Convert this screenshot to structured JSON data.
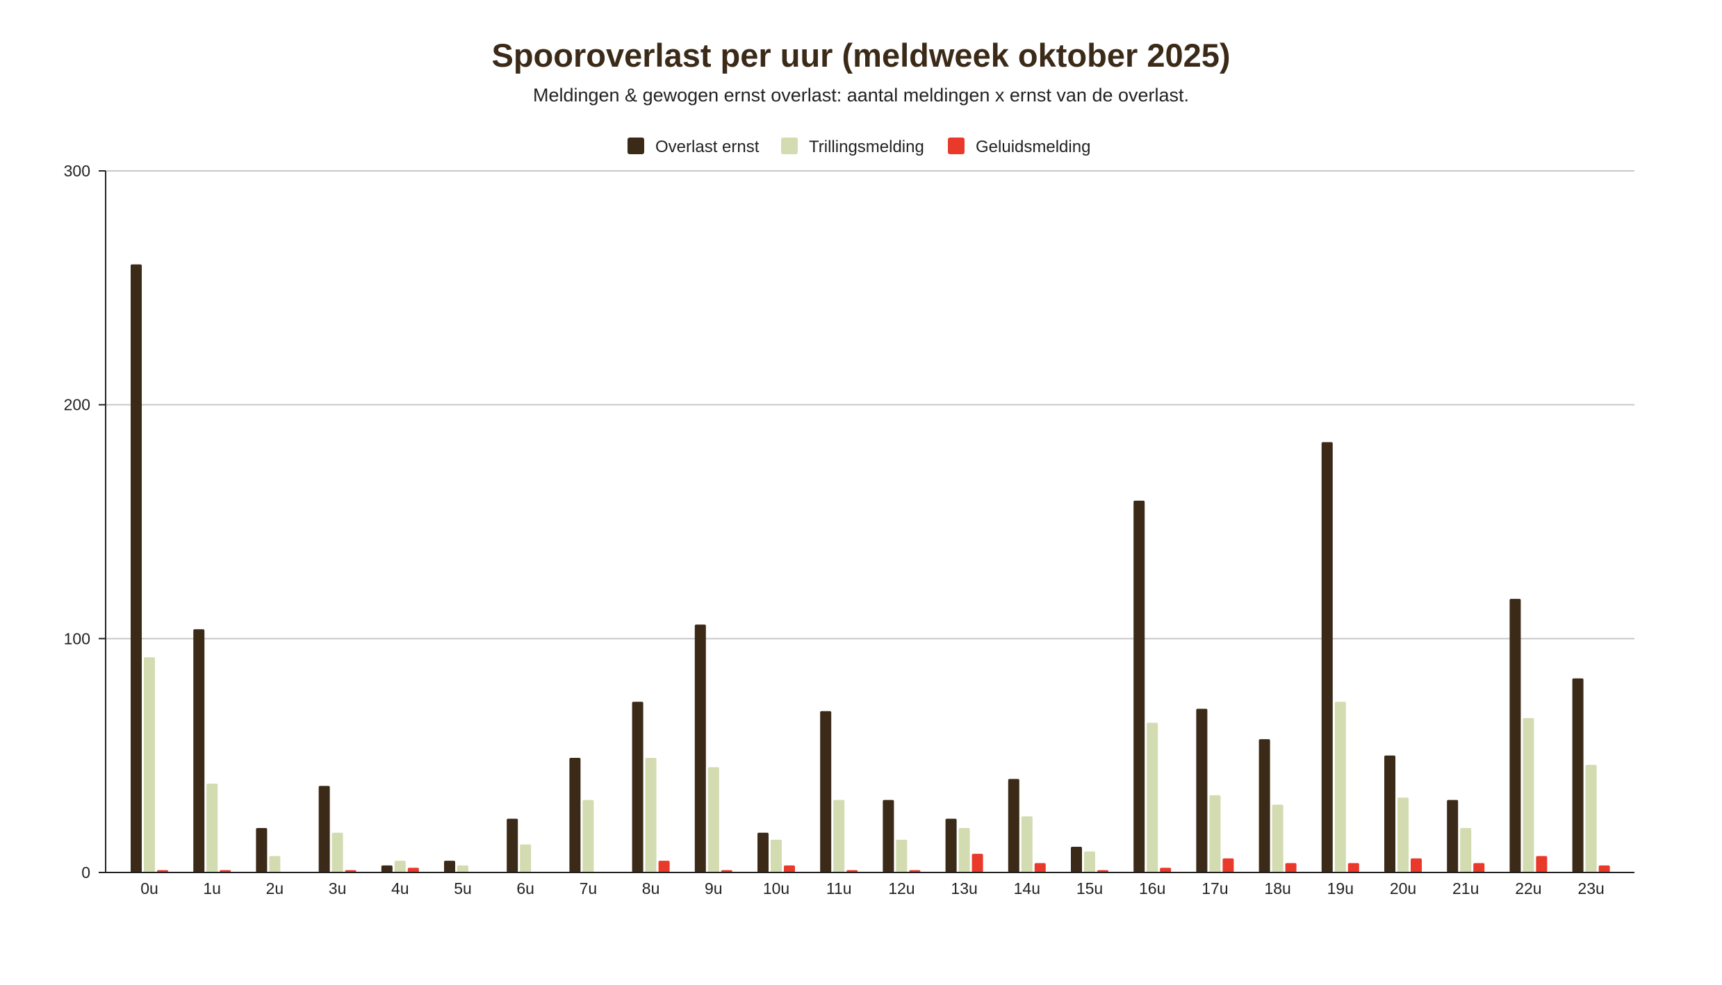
{
  "chart_data": {
    "type": "bar",
    "title": "Spooroverlast per uur (meldweek oktober 2025)",
    "subtitle": "Meldingen & gewogen ernst overlast: aantal meldingen x ernst van de overlast.",
    "xlabel": "",
    "ylabel": "",
    "ylim": [
      0,
      300
    ],
    "yticks": [
      0,
      100,
      200,
      300
    ],
    "grid": true,
    "legend_position": "top-center",
    "categories": [
      "0u",
      "1u",
      "2u",
      "3u",
      "4u",
      "5u",
      "6u",
      "7u",
      "8u",
      "9u",
      "10u",
      "11u",
      "12u",
      "13u",
      "14u",
      "15u",
      "16u",
      "17u",
      "18u",
      "19u",
      "20u",
      "21u",
      "22u",
      "23u"
    ],
    "series": [
      {
        "name": "Overlast ernst",
        "color": "#3b2a18",
        "values": [
          260,
          104,
          19,
          37,
          3,
          5,
          23,
          49,
          73,
          106,
          17,
          69,
          31,
          23,
          40,
          11,
          159,
          70,
          57,
          184,
          50,
          31,
          117,
          83
        ]
      },
      {
        "name": "Trillingsmelding",
        "color": "#d3dbb0",
        "values": [
          92,
          38,
          7,
          17,
          5,
          3,
          12,
          31,
          49,
          45,
          14,
          31,
          14,
          19,
          24,
          9,
          64,
          33,
          29,
          73,
          32,
          19,
          66,
          46
        ]
      },
      {
        "name": "Geluidsmelding",
        "color": "#e8392b",
        "values": [
          1,
          1,
          0,
          1,
          2,
          0,
          0,
          0,
          5,
          1,
          3,
          1,
          1,
          8,
          4,
          1,
          2,
          6,
          4,
          4,
          6,
          4,
          7,
          3
        ]
      }
    ]
  },
  "colors": {
    "title": "#3b2a18",
    "text": "#222222",
    "axis": "#222222",
    "grid": "#c8c8c8"
  }
}
